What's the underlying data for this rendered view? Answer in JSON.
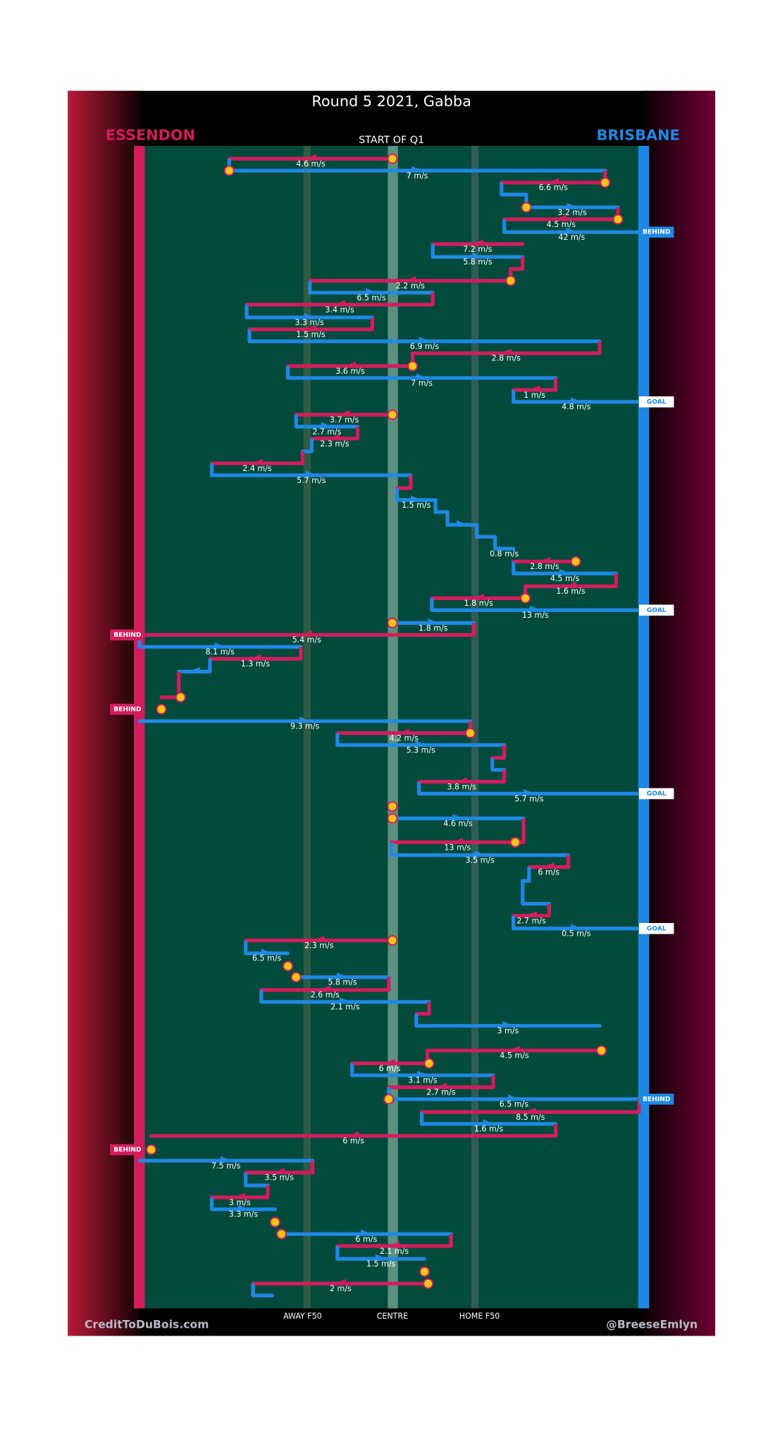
{
  "header": {
    "title": "Round 5 2021, Gabba",
    "away_team": "ESSENDON",
    "home_team": "BRISBANE",
    "period": "START OF Q1"
  },
  "axis": {
    "away_f50": "AWAY F50",
    "centre": "CENTRE",
    "home_f50": "HOME F50"
  },
  "footer": {
    "left": "CreditToDuBois.com",
    "right": "@BreeseEmlyn"
  },
  "segments": [
    "4.6 m/s",
    "7 m/s",
    "6.6 m/s",
    "3.2 m/s",
    "4.5 m/s",
    "42 m/s",
    "7.2 m/s",
    "5.8 m/s",
    "2.2 m/s",
    "6.5 m/s",
    "3.4 m/s",
    "3.3 m/s",
    "1.5 m/s",
    "6.9 m/s",
    "2.8 m/s",
    "3.6 m/s",
    "7 m/s",
    "1 m/s",
    "4.8 m/s",
    "3.7 m/s",
    "2.7 m/s",
    "2.3 m/s",
    "2.4 m/s",
    "5.7 m/s",
    "1.5 m/s",
    "0.8 m/s",
    "2.8 m/s",
    "4.5 m/s",
    "1.6 m/s",
    "1.8 m/s",
    "13 m/s",
    "1.8 m/s",
    "5.4 m/s",
    "8.1 m/s",
    "1.3 m/s",
    "9.3 m/s",
    "4.2 m/s",
    "5.3 m/s",
    "3.8 m/s",
    "5.7 m/s",
    "4.6 m/s",
    "13 m/s",
    "3.5 m/s",
    "6 m/s",
    "2.7 m/s",
    "0.5 m/s",
    "2.3 m/s",
    "6.5 m/s",
    "5.8 m/s",
    "2.6 m/s",
    "2.1 m/s",
    "3 m/s",
    "4.5 m/s",
    "6 m/s",
    "3.1 m/s",
    "2.7 m/s",
    "6.5 m/s",
    "8.5 m/s",
    "1.6 m/s",
    "6 m/s",
    "7.5 m/s",
    "3.5 m/s",
    "3 m/s",
    "3.3 m/s",
    "6 m/s",
    "2.1 m/s",
    "1.5 m/s",
    "2 m/s"
  ],
  "outcomes": [
    "BEHIND",
    "GOAL",
    "GOAL",
    "BEHIND",
    "BEHIND",
    "GOAL",
    "GOAL",
    "BEHIND",
    "BEHIND"
  ]
}
